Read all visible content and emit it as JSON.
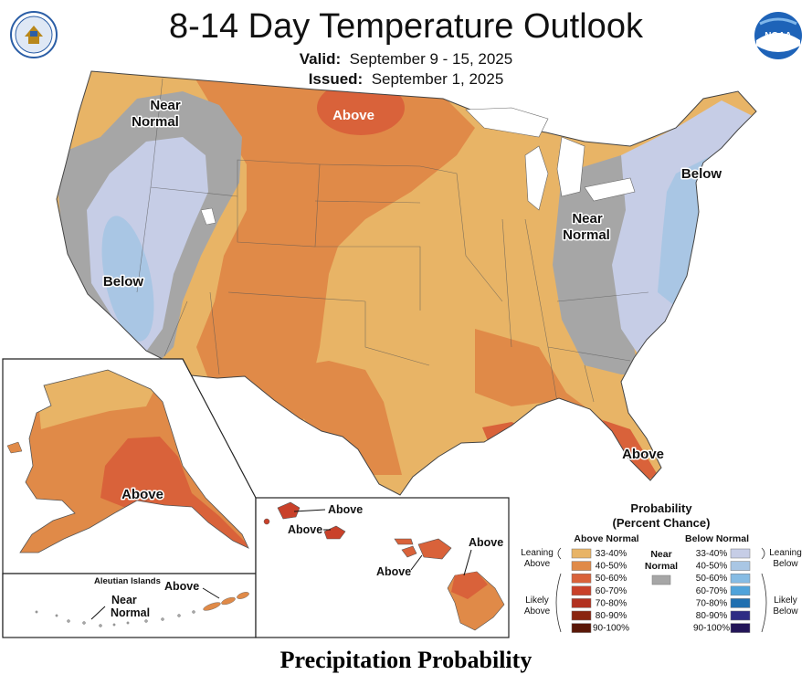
{
  "header": {
    "title": "8-14 Day Temperature Outlook",
    "valid_label": "Valid:",
    "valid_value": "September 9 - 15, 2025",
    "issued_label": "Issued:",
    "issued_value": "September 1, 2025"
  },
  "logos": {
    "left": "dept-of-commerce-seal",
    "right": "noaa-logo",
    "noaa_text": "NOAA"
  },
  "map_labels": {
    "nw_near_normal_1": "Near",
    "nw_near_normal_2": "Normal",
    "north_above": "Above",
    "west_below": "Below",
    "east_near_normal_1": "Near",
    "east_near_normal_2": "Normal",
    "ne_below": "Below",
    "florida_above": "Above",
    "alaska_above": "Above",
    "aleutian_title": "Aleutian Islands",
    "aleutian_above": "Above",
    "aleutian_near_1": "Near",
    "aleutian_near_2": "Normal",
    "hawaii_above_1": "Above",
    "hawaii_above_2": "Above",
    "hawaii_above_3": "Above",
    "hawaii_above_4": "Above"
  },
  "legend": {
    "title_1": "Probability",
    "title_2": "(Percent Chance)",
    "above_header": "Above Normal",
    "below_header": "Below Normal",
    "near_normal_1": "Near",
    "near_normal_2": "Normal",
    "leaning_above_1": "Leaning",
    "leaning_above_2": "Above",
    "likely_above_1": "Likely",
    "likely_above_2": "Above",
    "leaning_below_1": "Leaning",
    "leaning_below_2": "Below",
    "likely_below_1": "Likely",
    "likely_below_2": "Below",
    "above_ranges": [
      "33-40%",
      "40-50%",
      "50-60%",
      "60-70%",
      "70-80%",
      "80-90%",
      "90-100%"
    ],
    "below_ranges": [
      "33-40%",
      "40-50%",
      "50-60%",
      "60-70%",
      "70-80%",
      "80-90%",
      "90-100%"
    ],
    "above_colors": [
      "#E8B466",
      "#E08A48",
      "#D9623A",
      "#C9412A",
      "#B2301F",
      "#8A2510",
      "#5A1707"
    ],
    "below_colors": [
      "#C6CDE6",
      "#A9C6E4",
      "#86BCE4",
      "#4FA3DA",
      "#1F6FB0",
      "#2E2C84",
      "#231558"
    ],
    "near_color": "#A6A6A6"
  },
  "footer": {
    "text": "Precipitation Probability"
  }
}
